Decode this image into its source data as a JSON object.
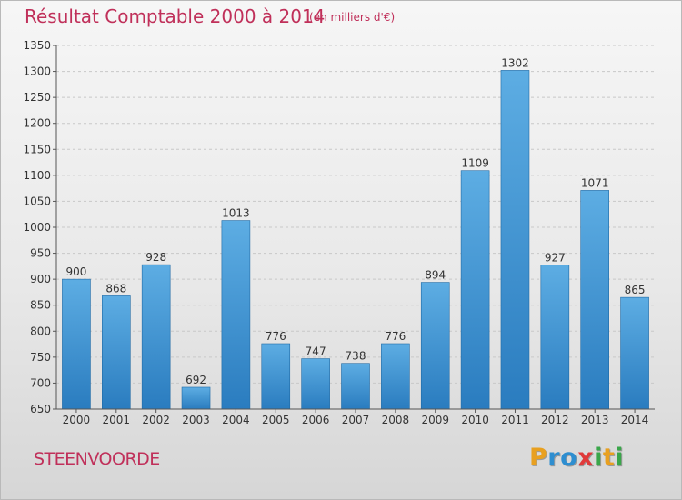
{
  "chart_data": {
    "type": "bar",
    "title": "Résultat Comptable 2000 à 2014",
    "unit_note": "(en milliers d'€)",
    "categories": [
      "2000",
      "2001",
      "2002",
      "2003",
      "2004",
      "2005",
      "2006",
      "2007",
      "2008",
      "2009",
      "2010",
      "2011",
      "2012",
      "2013",
      "2014"
    ],
    "values": [
      900,
      868,
      928,
      692,
      1013,
      776,
      747,
      738,
      776,
      894,
      1109,
      1302,
      927,
      1071,
      865
    ],
    "ylim": [
      650,
      1350
    ],
    "yticks": [
      650,
      700,
      750,
      800,
      850,
      900,
      950,
      1000,
      1050,
      1100,
      1150,
      1200,
      1250,
      1300,
      1350
    ],
    "grid": true,
    "bar_color_top": "#5dade3",
    "bar_color_bottom": "#2a7cbf"
  },
  "commune": "STEENVOORDE",
  "logo": {
    "letters": [
      "P",
      "r",
      "o",
      "x",
      "i",
      "t",
      "i"
    ],
    "colors": [
      "#e8a020",
      "#2e8ed0",
      "#2e8ed0",
      "#e03a3a",
      "#3aa64a",
      "#e8a020",
      "#3aa64a"
    ]
  }
}
